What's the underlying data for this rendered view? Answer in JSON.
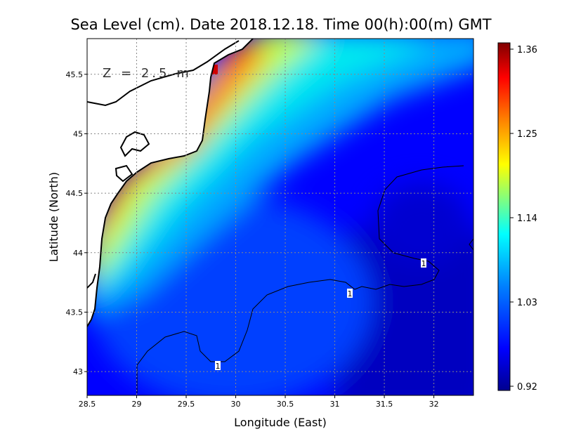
{
  "chart_data": {
    "type": "heatmap",
    "title": "Sea Level (cm). Date 2018.12.18. Time 00(h):00(m) GMT",
    "xlabel": "Longitude (East)",
    "ylabel": "Latitude (North)",
    "annotation": "Z = 2.5 m",
    "xlim": [
      28.5,
      32.4
    ],
    "ylim": [
      42.8,
      45.8
    ],
    "x_ticks": [
      "28.5",
      "29",
      "29.5",
      "30",
      "30.5",
      "31",
      "31.5",
      "32"
    ],
    "y_ticks": [
      "43",
      "43.5",
      "44",
      "44.5",
      "45",
      "45.5"
    ],
    "colorbar": {
      "min": 0.92,
      "max": 1.36,
      "ticks": [
        "0.92",
        "1.03",
        "1.14",
        "1.25",
        "1.36"
      ],
      "colors": [
        "#00008f",
        "#0000ff",
        "#0080ff",
        "#00ffff",
        "#80ff80",
        "#ffff00",
        "#ff8000",
        "#ff0000",
        "#800000"
      ]
    },
    "grid": true,
    "contour_labels": [
      "1",
      "1",
      "1"
    ],
    "field_notes": "Maximum (~1.3-1.36) along western coast near 45.6N 29.7E; decreasing offshore to ~0.93 in south-east."
  }
}
